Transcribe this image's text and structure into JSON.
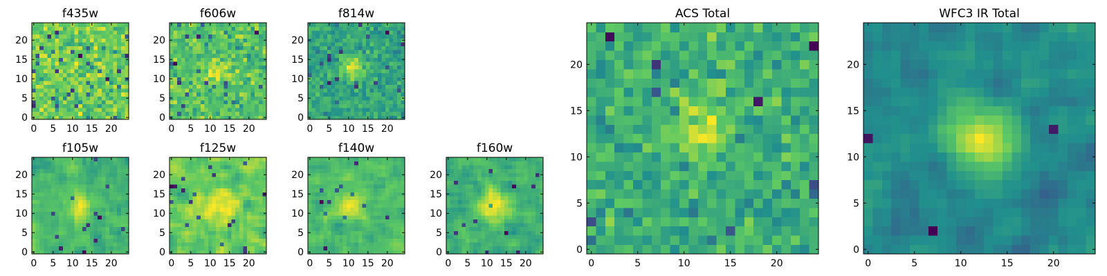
{
  "figure": {
    "description_free": true,
    "colormap": [
      "#440154",
      "#3b528b",
      "#21908d",
      "#5dc963",
      "#fde725"
    ]
  },
  "chart_data": [
    {
      "type": "heatmap",
      "title": "f435w",
      "grid_size": 25,
      "x_ticks": [
        "0",
        "5",
        "10",
        "15",
        "20"
      ],
      "y_ticks": [
        "0",
        "5",
        "10",
        "15",
        "20"
      ],
      "xlim": [
        0,
        25
      ],
      "ylim": [
        0,
        25
      ],
      "seed": 11,
      "noise": 1.0,
      "blob": {
        "cx": 12,
        "cy": 12,
        "sigma": 3.0,
        "amp": 0.0
      },
      "smooth": 0,
      "dark_outliers": 0.06
    },
    {
      "type": "heatmap",
      "title": "f606w",
      "grid_size": 25,
      "x_ticks": [
        "0",
        "5",
        "10",
        "15",
        "20"
      ],
      "y_ticks": [
        "0",
        "5",
        "10",
        "15",
        "20"
      ],
      "xlim": [
        0,
        25
      ],
      "ylim": [
        0,
        25
      ],
      "seed": 23,
      "noise": 1.0,
      "blob": {
        "cx": 12,
        "cy": 12,
        "sigma": 2.0,
        "amp": 0.8
      },
      "smooth": 0,
      "dark_outliers": 0.04
    },
    {
      "type": "heatmap",
      "title": "f814w",
      "grid_size": 25,
      "x_ticks": [
        "0",
        "5",
        "10",
        "15",
        "20"
      ],
      "y_ticks": [
        "0",
        "5",
        "10",
        "15",
        "20"
      ],
      "xlim": [
        0,
        25
      ],
      "ylim": [
        0,
        25
      ],
      "seed": 37,
      "noise": 1.0,
      "blob": {
        "cx": 11,
        "cy": 13,
        "sigma": 2.2,
        "amp": 1.1
      },
      "smooth": 0,
      "dark_outliers": 0.04
    },
    {
      "type": "heatmap",
      "title": "f105w",
      "grid_size": 25,
      "x_ticks": [
        "0",
        "5",
        "10",
        "15",
        "20"
      ],
      "y_ticks": [
        "0",
        "5",
        "10",
        "15",
        "20"
      ],
      "xlim": [
        0,
        25
      ],
      "ylim": [
        0,
        25
      ],
      "seed": 41,
      "noise": 1.0,
      "blob": {
        "cx": 12,
        "cy": 12,
        "sigma": 2.5,
        "amp": 0.9
      },
      "smooth": 1,
      "dark_outliers": 0.02
    },
    {
      "type": "heatmap",
      "title": "f125w",
      "grid_size": 25,
      "x_ticks": [
        "0",
        "5",
        "10",
        "15",
        "20"
      ],
      "y_ticks": [
        "0",
        "5",
        "10",
        "15",
        "20"
      ],
      "xlim": [
        0,
        25
      ],
      "ylim": [
        0,
        25
      ],
      "seed": 53,
      "noise": 1.0,
      "blob": {
        "cx": 12,
        "cy": 12,
        "sigma": 2.5,
        "amp": 0.6
      },
      "smooth": 1,
      "dark_outliers": 0.02
    },
    {
      "type": "heatmap",
      "title": "f140w",
      "grid_size": 25,
      "x_ticks": [
        "0",
        "5",
        "10",
        "15",
        "20"
      ],
      "y_ticks": [
        "0",
        "5",
        "10",
        "15",
        "20"
      ],
      "xlim": [
        0,
        25
      ],
      "ylim": [
        0,
        25
      ],
      "seed": 67,
      "noise": 1.0,
      "blob": {
        "cx": 11,
        "cy": 12,
        "sigma": 2.5,
        "amp": 0.8
      },
      "smooth": 1,
      "dark_outliers": 0.02
    },
    {
      "type": "heatmap",
      "title": "f160w",
      "grid_size": 25,
      "x_ticks": [
        "0",
        "5",
        "10",
        "15",
        "20"
      ],
      "y_ticks": [
        "0",
        "5",
        "10",
        "15",
        "20"
      ],
      "xlim": [
        0,
        25
      ],
      "ylim": [
        0,
        25
      ],
      "seed": 79,
      "noise": 1.0,
      "blob": {
        "cx": 12,
        "cy": 12,
        "sigma": 2.5,
        "amp": 1.3
      },
      "smooth": 1,
      "dark_outliers": 0.02
    },
    {
      "type": "heatmap",
      "title": "ACS Total",
      "grid_size": 25,
      "x_ticks": [
        "0",
        "5",
        "10",
        "15",
        "20"
      ],
      "y_ticks": [
        "0",
        "5",
        "10",
        "15",
        "20"
      ],
      "xlim": [
        0,
        25
      ],
      "ylim": [
        0,
        25
      ],
      "seed": 97,
      "noise": 1.0,
      "blob": {
        "cx": 12,
        "cy": 13,
        "sigma": 2.5,
        "amp": 0.9
      },
      "smooth": 0,
      "dark_outliers": 0.02
    },
    {
      "type": "heatmap",
      "title": "WFC3 IR Total",
      "grid_size": 25,
      "x_ticks": [
        "0",
        "5",
        "10",
        "15",
        "20"
      ],
      "y_ticks": [
        "0",
        "5",
        "10",
        "15",
        "20"
      ],
      "xlim": [
        0,
        25
      ],
      "ylim": [
        0,
        25
      ],
      "seed": 113,
      "noise": 1.0,
      "blob": {
        "cx": 12,
        "cy": 12,
        "sigma": 2.5,
        "amp": 1.8
      },
      "smooth": 1,
      "dark_outliers": 0.01
    }
  ]
}
